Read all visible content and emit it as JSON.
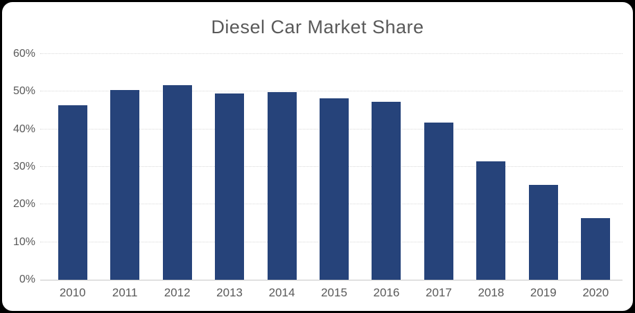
{
  "chart": {
    "colors": {
      "bar": "#26437A",
      "title_text": "#595959",
      "axis_text": "#595959",
      "gridline": "#D9D9D9",
      "axis_line": "#C6C6C6",
      "frame_border": "#000000",
      "plot_background": "#FFFFFF",
      "outside_background": "#000000"
    }
  },
  "chart_data": {
    "type": "bar",
    "title": "Diesel Car Market Share",
    "categories": [
      "2010",
      "2011",
      "2012",
      "2013",
      "2014",
      "2015",
      "2016",
      "2017",
      "2018",
      "2019",
      "2020"
    ],
    "values": [
      46.3,
      50.4,
      51.8,
      49.5,
      49.9,
      48.2,
      47.4,
      41.7,
      31.4,
      25.2,
      16.4
    ],
    "unit": "%",
    "xlabel": "",
    "ylabel": "",
    "ylim": [
      0,
      60
    ],
    "ytick_step": 10,
    "ytick_labels": [
      "0%",
      "10%",
      "20%",
      "30%",
      "40%",
      "50%",
      "60%"
    ],
    "grid": true,
    "legend": false
  }
}
